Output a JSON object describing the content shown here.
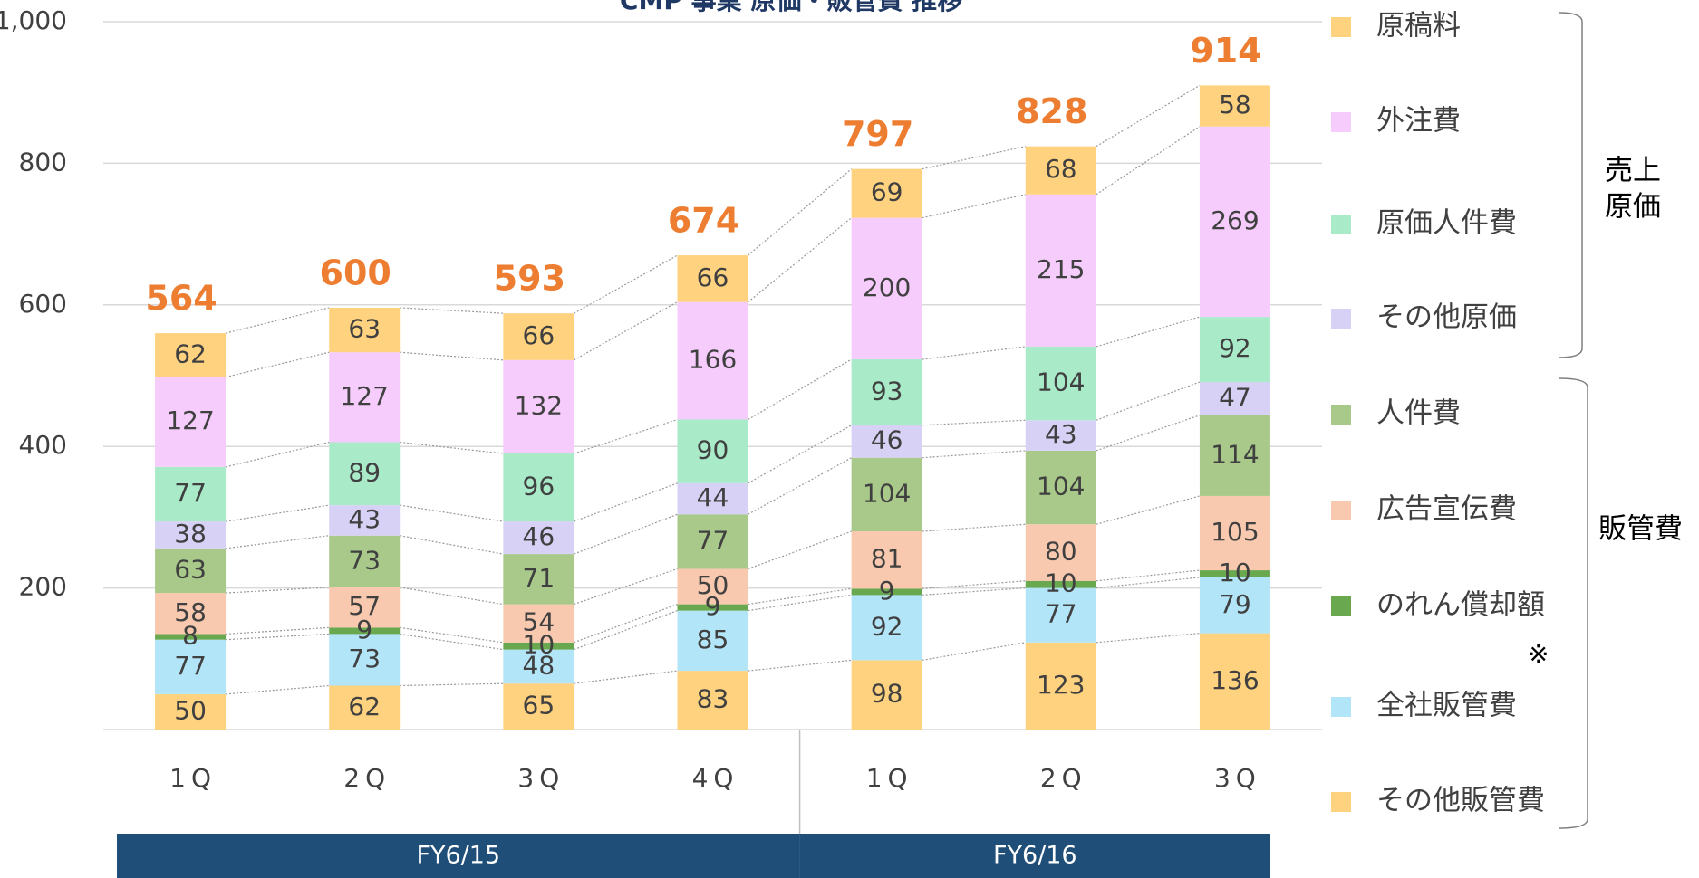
{
  "chart_data": {
    "type": "stacked_bar",
    "title": "CMP 事業 原価・販管費 推移",
    "categories": [
      "1Q",
      "2Q",
      "3Q",
      "4Q",
      "1Q",
      "2Q",
      "3Q"
    ],
    "groups": [
      {
        "name": "FY6/15",
        "span": [
          0,
          3
        ]
      },
      {
        "name": "FY6/16",
        "span": [
          4,
          6
        ]
      }
    ],
    "series": [
      {
        "name": "その他販管費",
        "color": "#ffd27f",
        "values": [
          50,
          62,
          65,
          83,
          98,
          123,
          136
        ]
      },
      {
        "name": "全社販管費",
        "color": "#b3e5f8",
        "values": [
          77,
          73,
          48,
          85,
          92,
          77,
          79
        ]
      },
      {
        "name": "のれん償却額",
        "color": "#6aa84f",
        "values": [
          8,
          9,
          10,
          9,
          9,
          10,
          10
        ]
      },
      {
        "name": "広告宣伝費",
        "color": "#f8c9ae",
        "values": [
          58,
          57,
          54,
          50,
          81,
          80,
          105
        ]
      },
      {
        "name": "人件費",
        "color": "#a9c98b",
        "values": [
          63,
          73,
          71,
          77,
          104,
          104,
          114
        ]
      },
      {
        "name": "その他原価",
        "color": "#d6d1f5",
        "values": [
          38,
          43,
          46,
          44,
          46,
          43,
          47
        ]
      },
      {
        "name": "原価人件費",
        "color": "#a9ebc9",
        "values": [
          77,
          89,
          96,
          90,
          93,
          104,
          92
        ]
      },
      {
        "name": "外注費",
        "color": "#f5ccfb",
        "values": [
          127,
          127,
          132,
          166,
          200,
          215,
          269
        ]
      },
      {
        "name": "原稿料",
        "color": "#ffd27f",
        "values": [
          62,
          63,
          66,
          66,
          69,
          68,
          58
        ]
      }
    ],
    "totals": [
      564,
      600,
      593,
      674,
      797,
      828,
      914
    ],
    "ylim": [
      0,
      1000
    ],
    "yticks": [
      200,
      400,
      600,
      800,
      {
        "value": 1000,
        "label": "1,000"
      }
    ],
    "grid": true,
    "cost_group_label": [
      "売上",
      "原価"
    ],
    "sga_group_label": "販管費",
    "note": "※"
  }
}
